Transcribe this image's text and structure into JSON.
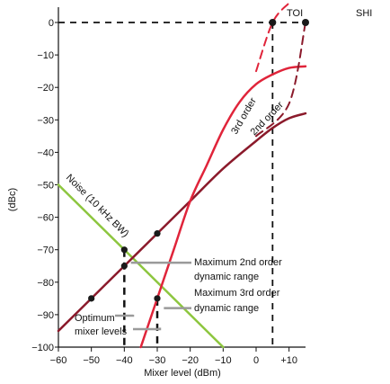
{
  "chart_data": {
    "type": "line",
    "title": "",
    "xlabel": "Mixer level (dBm)",
    "ylabel": "(dBc)",
    "xlim": [
      -60,
      15
    ],
    "ylim": [
      -100,
      5
    ],
    "xticks": [
      {
        "value": -60,
        "label": "-60"
      },
      {
        "value": -50,
        "label": "-50"
      },
      {
        "value": -40,
        "label": "-40"
      },
      {
        "value": -30,
        "label": "-30"
      },
      {
        "value": -20,
        "label": "-20"
      },
      {
        "value": -10,
        "label": "-10"
      },
      {
        "value": 0,
        "label": "0"
      },
      {
        "value": 10,
        "label": "+10"
      }
    ],
    "yticks": [
      {
        "value": 0,
        "label": "0"
      },
      {
        "value": -10,
        "label": "-10"
      },
      {
        "value": -20,
        "label": "-20"
      },
      {
        "value": -30,
        "label": "-30"
      },
      {
        "value": -40,
        "label": "-40"
      },
      {
        "value": -50,
        "label": "-50"
      },
      {
        "value": -60,
        "label": "-60"
      },
      {
        "value": -70,
        "label": "-70"
      },
      {
        "value": -80,
        "label": "-80"
      },
      {
        "value": -90,
        "label": "-90"
      },
      {
        "value": -100,
        "label": "-100"
      }
    ],
    "grid": false,
    "series": [
      {
        "name": "Noise (10 kHz BW)",
        "color": "#8dc63f",
        "style": "solid",
        "x": [
          -60,
          -10
        ],
        "y": [
          -50,
          -100
        ]
      },
      {
        "name": "2nd order",
        "color": "#8b1a2b",
        "style": "solid",
        "x": [
          -60,
          -50,
          -40,
          -35,
          -30,
          -20,
          -10,
          0,
          5,
          10,
          15
        ],
        "y": [
          -95,
          -85,
          -75,
          -70,
          -65,
          -55,
          -45,
          -36.5,
          -32.5,
          -29.5,
          -28
        ]
      },
      {
        "name": "3rd order",
        "color": "#e0243a",
        "style": "solid",
        "x": [
          -35,
          -30,
          -25,
          -20,
          -15,
          -10,
          -5,
          0,
          5,
          10,
          15
        ],
        "y": [
          -100,
          -85,
          -70,
          -55,
          -44,
          -33,
          -24.5,
          -19,
          -16,
          -14,
          -13.5
        ]
      },
      {
        "name": "2nd order extrapolation",
        "color": "#8b1a2b",
        "style": "dashed",
        "x": [
          0,
          10,
          15
        ],
        "y": [
          -35,
          -25,
          0
        ]
      },
      {
        "name": "3rd order extrapolation",
        "color": "#e0243a",
        "style": "dashed",
        "x": [
          0,
          5,
          10
        ],
        "y": [
          -15,
          0,
          6
        ]
      }
    ],
    "points": [
      {
        "series": "2nd order",
        "x": -50,
        "y": -85
      },
      {
        "series": "2nd order",
        "x": -40,
        "y": -75
      },
      {
        "series": "2nd order",
        "x": -30,
        "y": -65
      },
      {
        "series": "Noise",
        "x": -40,
        "y": -70
      },
      {
        "series": "3rd order",
        "x": -30,
        "y": -85
      },
      {
        "series": "TOI",
        "x": 5,
        "y": 0
      },
      {
        "series": "SHI",
        "x": 15,
        "y": 0
      }
    ],
    "annotations": {
      "toi": "TOI",
      "shi": "SHI",
      "noise_label": "Noise (10 kHz BW)",
      "order2_label": "2nd order",
      "order3_label": "3rd order",
      "max2_line1": "Maximum 2nd order",
      "max2_line2": "dynamic range",
      "max3_line1": "Maximum 3rd order",
      "max3_line2": "dynamic range",
      "optimum_line1": "Optimum",
      "optimum_line2": "mixer levels"
    }
  }
}
